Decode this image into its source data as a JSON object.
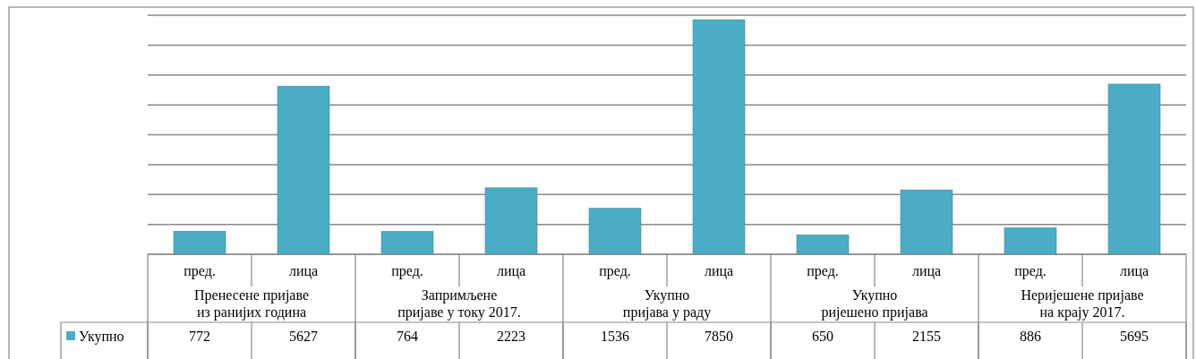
{
  "chart_data": {
    "type": "bar",
    "categories": [
      "пред.",
      "лица",
      "пред.",
      "лица",
      "пред.",
      "лица",
      "пред.",
      "лица",
      "пред.",
      "лица"
    ],
    "annotations": [
      "Пренесене пријаве\nиз ранијих година",
      "Запримљене\nпријаве у току 2017.",
      "Укупно\nпријава у раду",
      "Укупно\nријешено пријава",
      "Неријешене пријаве\nна крају 2017."
    ],
    "series": [
      {
        "name": "Укупно",
        "color": "#4bacc6",
        "values": [
          772,
          5627,
          764,
          2223,
          1536,
          7850,
          650,
          2155,
          886,
          5695
        ]
      }
    ],
    "ylim": [
      0,
      8000
    ],
    "yticks": [
      {
        "value": 0,
        "label": null
      },
      {
        "value": 1000,
        "label": null
      },
      {
        "value": 2000,
        "label": null
      },
      {
        "value": 3000,
        "label": null
      },
      {
        "value": 4000,
        "label": null
      },
      {
        "value": 5000,
        "label": null
      },
      {
        "value": 6000,
        "label": null
      },
      {
        "value": 7000,
        "label": null
      },
      {
        "value": 8000,
        "label": null
      }
    ],
    "grid": true,
    "data_labels": true,
    "legend": "bottom left",
    "tick_labels": "x"
  }
}
